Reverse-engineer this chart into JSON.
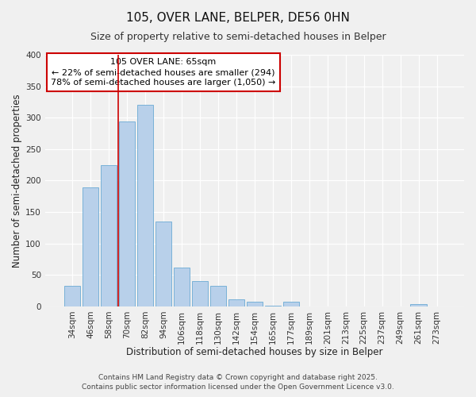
{
  "title": "105, OVER LANE, BELPER, DE56 0HN",
  "subtitle": "Size of property relative to semi-detached houses in Belper",
  "xlabel": "Distribution of semi-detached houses by size in Belper",
  "ylabel": "Number of semi-detached properties",
  "categories": [
    "34sqm",
    "46sqm",
    "58sqm",
    "70sqm",
    "82sqm",
    "94sqm",
    "106sqm",
    "118sqm",
    "130sqm",
    "142sqm",
    "154sqm",
    "165sqm",
    "177sqm",
    "189sqm",
    "201sqm",
    "213sqm",
    "225sqm",
    "237sqm",
    "249sqm",
    "261sqm",
    "273sqm"
  ],
  "values": [
    32,
    189,
    225,
    294,
    320,
    135,
    62,
    40,
    33,
    11,
    8,
    1,
    7,
    0,
    0,
    0,
    0,
    0,
    0,
    3,
    0
  ],
  "bar_color": "#b8d0ea",
  "bar_edge_color": "#6aaad4",
  "vline_color": "#cc0000",
  "vline_x_idx": 2.5,
  "annotation_title": "105 OVER LANE: 65sqm",
  "annotation_line1": "← 22% of semi-detached houses are smaller (294)",
  "annotation_line2": "78% of semi-detached houses are larger (1,050) →",
  "annotation_box_edge_color": "#cc0000",
  "annotation_box_face_color": "#ffffff",
  "ylim": [
    0,
    400
  ],
  "yticks": [
    0,
    50,
    100,
    150,
    200,
    250,
    300,
    350,
    400
  ],
  "footer1": "Contains HM Land Registry data © Crown copyright and database right 2025.",
  "footer2": "Contains public sector information licensed under the Open Government Licence v3.0.",
  "background_color": "#f0f0f0",
  "grid_color": "#ffffff",
  "title_fontsize": 11,
  "subtitle_fontsize": 9,
  "axis_label_fontsize": 8.5,
  "tick_fontsize": 7.5,
  "annotation_title_fontsize": 8.5,
  "annotation_text_fontsize": 8,
  "footer_fontsize": 6.5
}
